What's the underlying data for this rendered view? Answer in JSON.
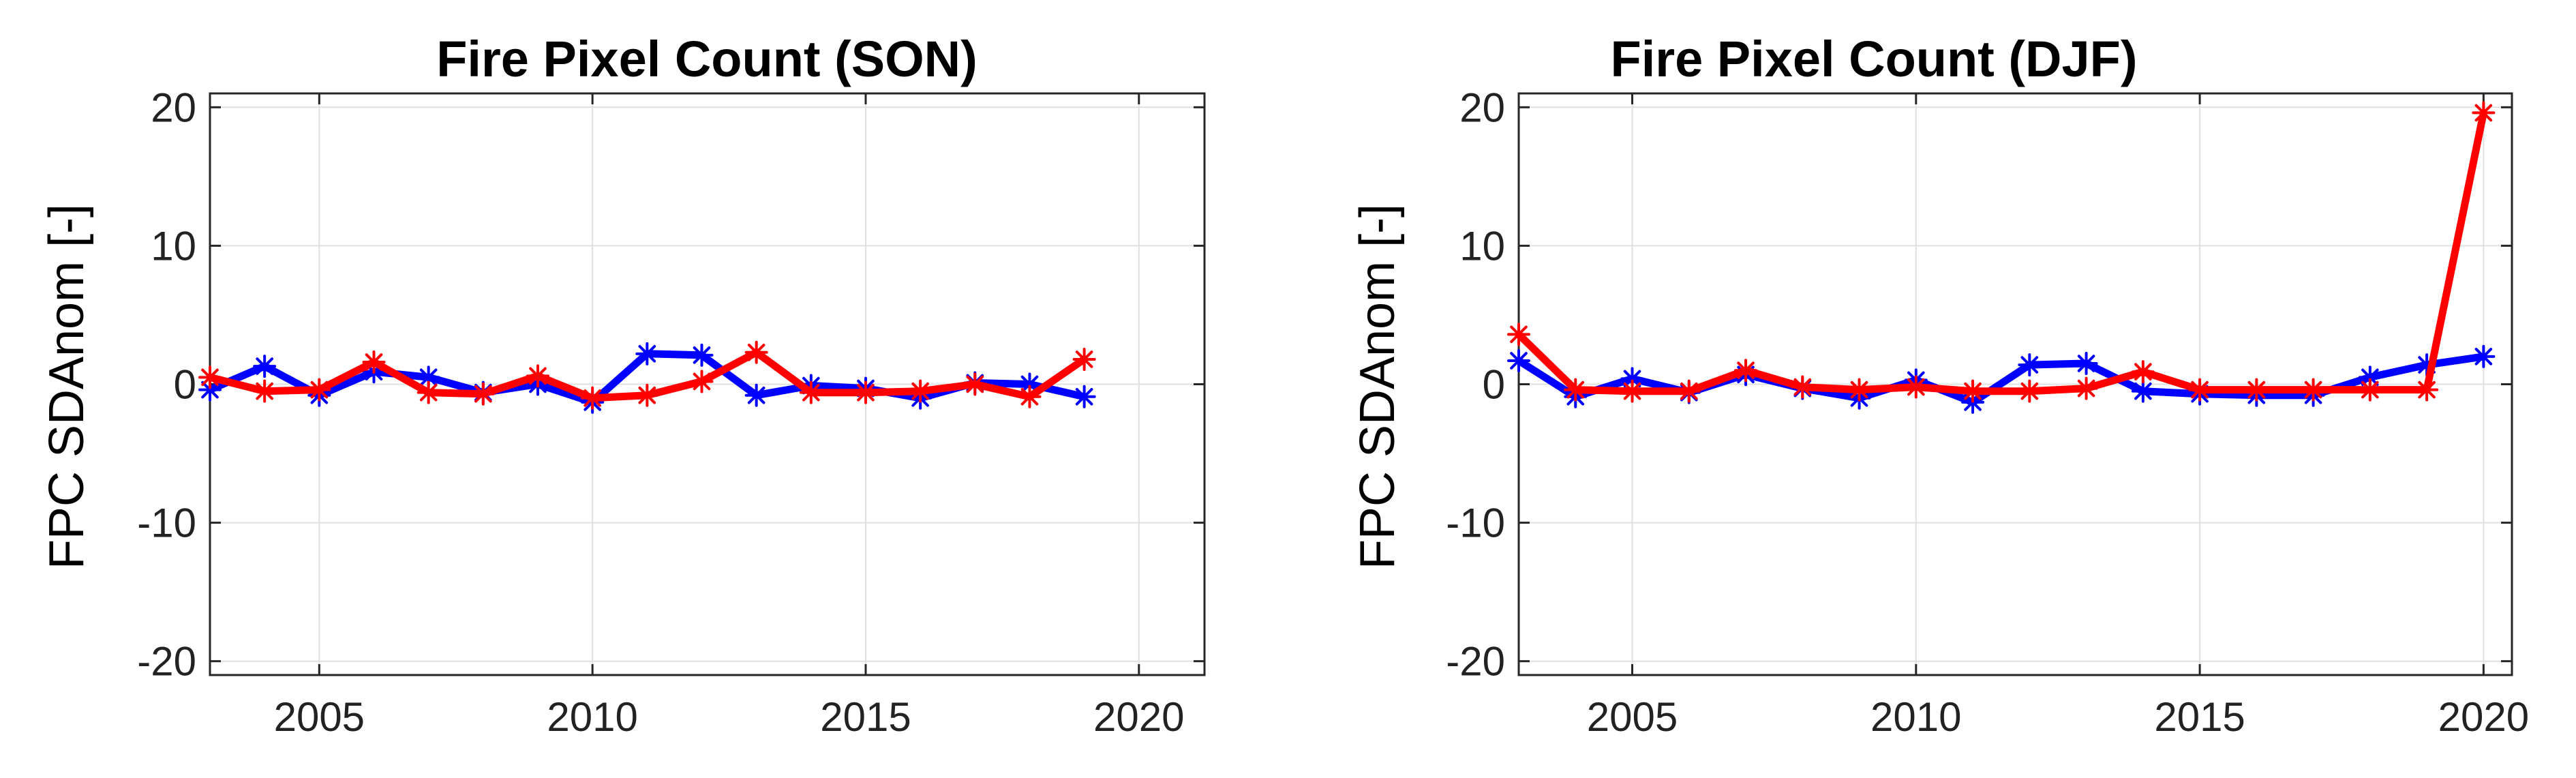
{
  "chart_data": [
    {
      "type": "line",
      "title": "Fire Pixel Count (SON)",
      "xlabel": "",
      "ylabel": "FPC SDAnom [-]",
      "xlim": [
        2003,
        2021.2
      ],
      "ylim": [
        -21,
        21
      ],
      "xticks": [
        2005,
        2010,
        2015,
        2020
      ],
      "yticks": [
        -20,
        -10,
        0,
        10,
        20
      ],
      "grid": true,
      "x": [
        2003,
        2004,
        2005,
        2006,
        2007,
        2008,
        2009,
        2010,
        2011,
        2012,
        2013,
        2014,
        2015,
        2016,
        2017,
        2018,
        2019
      ],
      "series": [
        {
          "color": "#0000ff",
          "marker": "asterisk",
          "values": [
            -0.4,
            1.3,
            -0.8,
            0.9,
            0.5,
            -0.6,
            0.0,
            -1.3,
            2.2,
            2.1,
            -0.8,
            -0.1,
            -0.3,
            -1.0,
            0.1,
            0.0,
            -0.9
          ]
        },
        {
          "color": "#ff0000",
          "marker": "asterisk",
          "values": [
            0.5,
            -0.5,
            -0.4,
            1.6,
            -0.6,
            -0.7,
            0.6,
            -1.0,
            -0.8,
            0.2,
            2.3,
            -0.6,
            -0.6,
            -0.5,
            0.0,
            -0.9,
            1.8
          ]
        }
      ]
    },
    {
      "type": "line",
      "title": "Fire Pixel Count (DJF)",
      "xlabel": "",
      "ylabel": "FPC SDAnom [-]",
      "xlim": [
        2003,
        2020.5
      ],
      "ylim": [
        -21,
        21
      ],
      "xticks": [
        2005,
        2010,
        2015,
        2020
      ],
      "yticks": [
        -20,
        -10,
        0,
        10,
        20
      ],
      "grid": true,
      "x": [
        2003,
        2004,
        2005,
        2006,
        2007,
        2008,
        2009,
        2010,
        2011,
        2012,
        2013,
        2014,
        2015,
        2016,
        2017,
        2018,
        2019,
        2020
      ],
      "series": [
        {
          "color": "#0000ff",
          "marker": "asterisk",
          "values": [
            1.7,
            -0.9,
            0.4,
            -0.6,
            0.7,
            -0.3,
            -1.0,
            0.3,
            -1.3,
            1.4,
            1.5,
            -0.5,
            -0.7,
            -0.8,
            -0.8,
            0.5,
            1.4,
            2.0
          ]
        },
        {
          "color": "#ff0000",
          "marker": "asterisk",
          "values": [
            3.6,
            -0.4,
            -0.5,
            -0.5,
            1.0,
            -0.2,
            -0.4,
            -0.2,
            -0.5,
            -0.5,
            -0.3,
            0.9,
            -0.4,
            -0.4,
            -0.4,
            -0.4,
            -0.4,
            19.6
          ]
        }
      ]
    }
  ]
}
